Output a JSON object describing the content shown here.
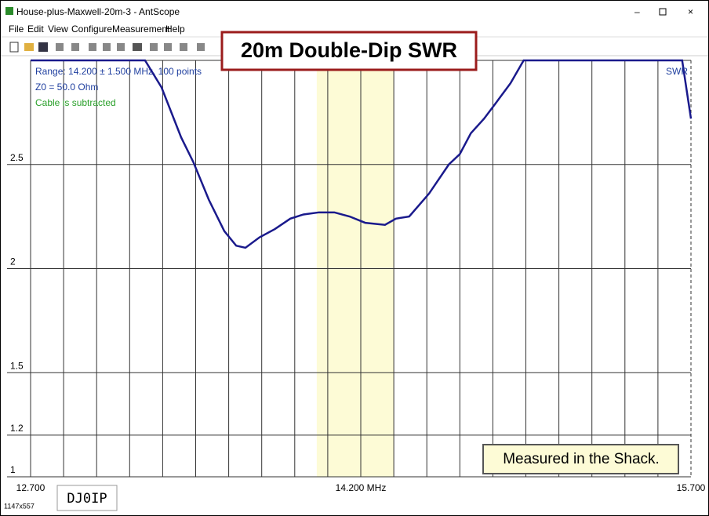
{
  "window": {
    "title": "House-plus-Maxwell-20m-3 - AntScope",
    "menu": [
      "File",
      "Edit",
      "View",
      "Configure",
      "Measurement",
      "Help"
    ],
    "status": "1147x557"
  },
  "overlays": {
    "headline": "20m Double-Dip SWR",
    "note": "Measured in the Shack.",
    "callsign": "DJ0IP"
  },
  "chart_data": {
    "type": "line",
    "info": [
      "Range: 14.200 ± 1.500 MHz, 100 points",
      "Z0 = 50.0 Ohm",
      "Cable is subtracted"
    ],
    "info_colors": [
      "#1f3f9f",
      "#1f3f9f",
      "#2aa02a"
    ],
    "xlim": [
      12.7,
      15.7
    ],
    "ylim": [
      1,
      3
    ],
    "xticks": [
      {
        "value": 12.7,
        "label": "12.700"
      },
      {
        "value": 14.2,
        "label": "14.200 MHz"
      },
      {
        "value": 15.7,
        "label": "15.700"
      }
    ],
    "xgrid": [
      12.85,
      13.0,
      13.15,
      13.3,
      13.45,
      13.6,
      13.75,
      13.9,
      14.05,
      14.35,
      14.5,
      14.65,
      14.8,
      14.95,
      15.1,
      15.25,
      15.4,
      15.55
    ],
    "yticks": [
      1,
      1.2,
      1.5,
      2,
      2.5
    ],
    "band": [
      14.0,
      14.35
    ],
    "band_color": "#fdfbd6",
    "x": [
      12.7,
      13.22,
      13.295,
      13.384,
      13.44,
      13.51,
      13.58,
      13.634,
      13.676,
      13.74,
      13.81,
      13.88,
      13.94,
      14.01,
      14.08,
      14.15,
      14.22,
      14.31,
      14.36,
      14.42,
      14.51,
      14.6,
      14.65,
      14.7,
      14.76,
      14.81,
      14.88,
      14.94,
      15.66,
      15.7
    ],
    "series": [
      {
        "name": "SWR",
        "color": "#1a1a8c",
        "values": [
          3,
          3,
          2.87,
          2.63,
          2.51,
          2.33,
          2.18,
          2.11,
          2.1,
          2.15,
          2.19,
          2.24,
          2.26,
          2.27,
          2.27,
          2.25,
          2.22,
          2.21,
          2.24,
          2.25,
          2.36,
          2.5,
          2.55,
          2.65,
          2.72,
          2.79,
          2.89,
          3,
          3,
          2.72
        ]
      }
    ]
  }
}
